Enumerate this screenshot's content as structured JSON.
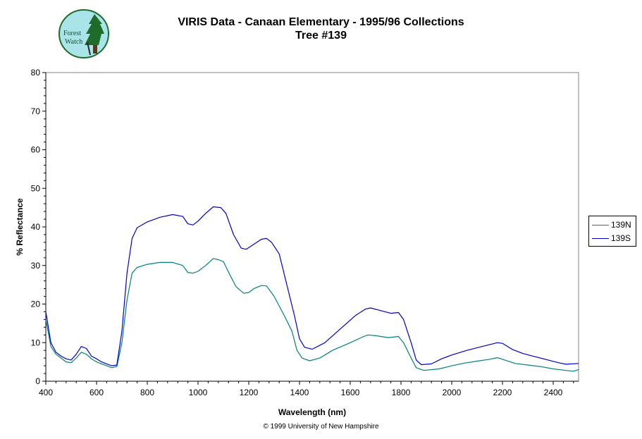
{
  "title_line1": "VIRIS Data - Canaan Elementary - 1995/96 Collections",
  "title_line2": "Tree #139",
  "logo_text": [
    "Forest",
    "Watch"
  ],
  "footer": "© 1999 University of New Hampshire",
  "colors": {
    "series_139N": "#008080",
    "series_139S": "#0000cc",
    "logo_bg": "#a9e4e9",
    "tree": "#1f6b2a"
  },
  "chart_data": {
    "type": "line",
    "title": "VIRIS Data - Canaan Elementary - 1995/96 Collections",
    "subtitle": "Tree #139",
    "xlabel": "Wavelength (nm)",
    "ylabel": "% Reflectance",
    "xlim": [
      400,
      2500
    ],
    "ylim": [
      0,
      80
    ],
    "xticks": [
      400,
      600,
      800,
      1000,
      1200,
      1400,
      1600,
      1800,
      2000,
      2200,
      2400
    ],
    "yticks": [
      0,
      10,
      20,
      30,
      40,
      50,
      60,
      70,
      80
    ],
    "grid": false,
    "legend_position": "right",
    "series": [
      {
        "name": "139N",
        "color": "#008080",
        "points": [
          [
            400,
            16
          ],
          [
            420,
            9
          ],
          [
            440,
            7
          ],
          [
            460,
            6
          ],
          [
            480,
            5
          ],
          [
            500,
            4.8
          ],
          [
            520,
            6
          ],
          [
            540,
            7.5
          ],
          [
            560,
            7
          ],
          [
            580,
            5.8
          ],
          [
            600,
            5
          ],
          [
            620,
            4.5
          ],
          [
            640,
            4
          ],
          [
            660,
            3.5
          ],
          [
            680,
            3.8
          ],
          [
            700,
            10
          ],
          [
            720,
            21
          ],
          [
            740,
            28
          ],
          [
            760,
            29.5
          ],
          [
            800,
            30.3
          ],
          [
            850,
            30.8
          ],
          [
            900,
            30.8
          ],
          [
            940,
            30
          ],
          [
            960,
            28.2
          ],
          [
            980,
            28
          ],
          [
            1000,
            28.5
          ],
          [
            1030,
            30
          ],
          [
            1060,
            31.8
          ],
          [
            1080,
            31.5
          ],
          [
            1100,
            31
          ],
          [
            1130,
            27
          ],
          [
            1150,
            24.5
          ],
          [
            1180,
            22.8
          ],
          [
            1200,
            23
          ],
          [
            1220,
            24
          ],
          [
            1250,
            24.8
          ],
          [
            1270,
            24.7
          ],
          [
            1300,
            22
          ],
          [
            1340,
            17
          ],
          [
            1370,
            13
          ],
          [
            1390,
            8
          ],
          [
            1410,
            6
          ],
          [
            1440,
            5.3
          ],
          [
            1480,
            6
          ],
          [
            1530,
            8
          ],
          [
            1600,
            10
          ],
          [
            1650,
            11.5
          ],
          [
            1670,
            12
          ],
          [
            1700,
            11.8
          ],
          [
            1750,
            11.3
          ],
          [
            1790,
            11.6
          ],
          [
            1810,
            10
          ],
          [
            1840,
            6
          ],
          [
            1860,
            3.5
          ],
          [
            1890,
            2.8
          ],
          [
            1950,
            3.2
          ],
          [
            2000,
            4
          ],
          [
            2050,
            4.7
          ],
          [
            2100,
            5.2
          ],
          [
            2150,
            5.7
          ],
          [
            2180,
            6.1
          ],
          [
            2200,
            5.7
          ],
          [
            2250,
            4.6
          ],
          [
            2300,
            4.2
          ],
          [
            2350,
            3.8
          ],
          [
            2400,
            3.2
          ],
          [
            2450,
            2.8
          ],
          [
            2480,
            2.6
          ],
          [
            2500,
            3
          ]
        ]
      },
      {
        "name": "139S",
        "color": "#0000cc",
        "points": [
          [
            400,
            18
          ],
          [
            420,
            10
          ],
          [
            440,
            7.5
          ],
          [
            460,
            6.5
          ],
          [
            480,
            5.8
          ],
          [
            500,
            5.5
          ],
          [
            520,
            7
          ],
          [
            540,
            9
          ],
          [
            560,
            8.5
          ],
          [
            580,
            6.5
          ],
          [
            600,
            5.8
          ],
          [
            620,
            5
          ],
          [
            640,
            4.5
          ],
          [
            660,
            4
          ],
          [
            680,
            4.2
          ],
          [
            700,
            13
          ],
          [
            720,
            28
          ],
          [
            740,
            37
          ],
          [
            760,
            39.8
          ],
          [
            800,
            41.3
          ],
          [
            850,
            42.5
          ],
          [
            900,
            43.2
          ],
          [
            940,
            42.7
          ],
          [
            960,
            40.8
          ],
          [
            980,
            40.5
          ],
          [
            1000,
            41.5
          ],
          [
            1030,
            43.5
          ],
          [
            1060,
            45.2
          ],
          [
            1090,
            45
          ],
          [
            1110,
            43.5
          ],
          [
            1140,
            38
          ],
          [
            1170,
            34.5
          ],
          [
            1190,
            34.2
          ],
          [
            1220,
            35.5
          ],
          [
            1250,
            36.8
          ],
          [
            1270,
            37
          ],
          [
            1290,
            36
          ],
          [
            1320,
            33
          ],
          [
            1350,
            25
          ],
          [
            1380,
            17
          ],
          [
            1400,
            11
          ],
          [
            1420,
            8.8
          ],
          [
            1450,
            8.3
          ],
          [
            1500,
            10
          ],
          [
            1560,
            13.5
          ],
          [
            1620,
            17
          ],
          [
            1660,
            18.7
          ],
          [
            1680,
            19
          ],
          [
            1720,
            18.3
          ],
          [
            1760,
            17.6
          ],
          [
            1790,
            17.8
          ],
          [
            1810,
            16
          ],
          [
            1840,
            10
          ],
          [
            1860,
            5.5
          ],
          [
            1880,
            4.3
          ],
          [
            1920,
            4.5
          ],
          [
            1960,
            5.8
          ],
          [
            2000,
            6.8
          ],
          [
            2060,
            8
          ],
          [
            2120,
            9
          ],
          [
            2180,
            10
          ],
          [
            2200,
            9.8
          ],
          [
            2240,
            8.2
          ],
          [
            2280,
            7.2
          ],
          [
            2320,
            6.5
          ],
          [
            2380,
            5.5
          ],
          [
            2420,
            4.8
          ],
          [
            2450,
            4.4
          ],
          [
            2500,
            4.6
          ]
        ]
      }
    ]
  }
}
